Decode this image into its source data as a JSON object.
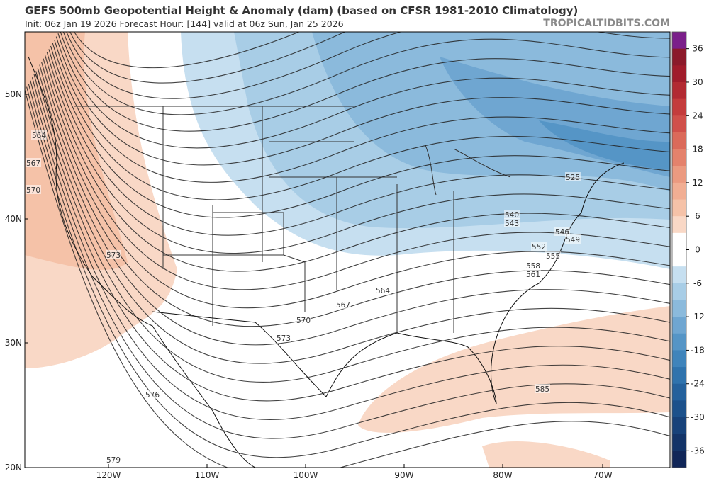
{
  "title": "GEFS 500mb Geopotential Height & Anomaly (dam) (based on CFSR 1981-2010 Climatology)",
  "subtitle": "Init: 06z Jan 19 2026   Forecast Hour: [144]   valid at 06z Sun, Jan 25 2026",
  "watermark": "TROPICALTIDBITS.COM",
  "lat_labels": [
    "50N",
    "40N",
    "30N",
    "20N"
  ],
  "lon_labels": [
    "120W",
    "110W",
    "100W",
    "90W",
    "80W",
    "70W"
  ],
  "contour_labels": [
    564,
    567,
    570,
    573,
    576,
    579,
    525,
    540,
    543,
    546,
    549,
    552,
    555,
    558,
    561,
    564,
    567,
    570,
    573,
    585
  ],
  "colorbar": {
    "range": [
      -39,
      39
    ],
    "ticks": [
      36,
      30,
      24,
      18,
      12,
      6,
      0,
      -6,
      -12,
      -18,
      -24,
      -30,
      -36
    ],
    "colors": [
      "#7b1f8a",
      "#8b1a2a",
      "#a01c2b",
      "#b22a32",
      "#c43c3c",
      "#d0504a",
      "#db6a5a",
      "#e4826c",
      "#eb9a80",
      "#f1ae93",
      "#f5c2a8",
      "#f9d8c6",
      "#ffffff",
      "#ffffff",
      "#c6dff0",
      "#a8cde6",
      "#8bbadc",
      "#6fa6d1",
      "#5595c6",
      "#3f84bb",
      "#2f73ad",
      "#24619c",
      "#1c518b",
      "#17427a",
      "#133468",
      "#102658"
    ]
  }
}
